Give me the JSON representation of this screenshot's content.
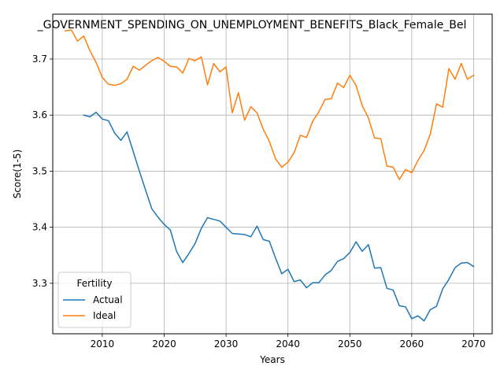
{
  "chart_data": {
    "type": "line",
    "title": "_GOVERNMENT_SPENDING_ON_UNEMPLOYMENT_BENEFITS_Black_Female_Bel",
    "xlabel": "Years",
    "ylabel": "Score(1-5)",
    "xlim": [
      2002,
      2073
    ],
    "ylim": [
      3.21,
      3.78
    ],
    "xticks": [
      2010,
      2020,
      2030,
      2040,
      2050,
      2060,
      2070
    ],
    "xtick_labels": [
      "2010",
      "2020",
      "2030",
      "2040",
      "2050",
      "2060",
      "2070"
    ],
    "yticks": [
      3.3,
      3.4,
      3.5,
      3.6,
      3.7
    ],
    "ytick_labels": [
      "3.3",
      "3.4",
      "3.5",
      "3.6",
      "3.7"
    ],
    "grid": true,
    "legend": {
      "title": "Fertility",
      "placement": "lower-left"
    },
    "series": [
      {
        "name": "Actual",
        "color": "#1f77b4",
        "x": [
          2007,
          2008,
          2009,
          2010,
          2011,
          2012,
          2013,
          2014,
          2015,
          2016,
          2017,
          2018,
          2019,
          2020,
          2021,
          2022,
          2023,
          2024,
          2025,
          2026,
          2027,
          2028,
          2029,
          2030,
          2031,
          2032,
          2033,
          2034,
          2035,
          2036,
          2037,
          2038,
          2039,
          2040,
          2041,
          2042,
          2043,
          2044,
          2045,
          2046,
          2047,
          2048,
          2049,
          2050,
          2051,
          2052,
          2053,
          2054,
          2055,
          2056,
          2057,
          2058,
          2059,
          2060,
          2061,
          2062,
          2063,
          2064,
          2065,
          2066,
          2067,
          2068,
          2069,
          2070
        ],
        "values": [
          3.6,
          3.597,
          3.605,
          3.593,
          3.59,
          3.568,
          3.555,
          3.57,
          3.535,
          3.5,
          3.466,
          3.433,
          3.418,
          3.405,
          3.395,
          3.357,
          3.337,
          3.353,
          3.371,
          3.398,
          3.417,
          3.414,
          3.411,
          3.4,
          3.389,
          3.388,
          3.387,
          3.383,
          3.402,
          3.378,
          3.375,
          3.345,
          3.317,
          3.325,
          3.303,
          3.306,
          3.292,
          3.301,
          3.301,
          3.315,
          3.323,
          3.339,
          3.344,
          3.355,
          3.374,
          3.357,
          3.369,
          3.327,
          3.328,
          3.291,
          3.288,
          3.26,
          3.258,
          3.237,
          3.242,
          3.233,
          3.253,
          3.259,
          3.29,
          3.307,
          3.328,
          3.336,
          3.337,
          3.33
        ]
      },
      {
        "name": "Ideal",
        "color": "#ff7f0e",
        "x": [
          2004,
          2005,
          2006,
          2007,
          2008,
          2009,
          2010,
          2011,
          2012,
          2013,
          2014,
          2015,
          2016,
          2017,
          2018,
          2019,
          2020,
          2021,
          2022,
          2023,
          2024,
          2025,
          2026,
          2027,
          2028,
          2029,
          2030,
          2031,
          2032,
          2033,
          2034,
          2035,
          2036,
          2037,
          2038,
          2039,
          2040,
          2041,
          2042,
          2043,
          2044,
          2045,
          2046,
          2047,
          2048,
          2049,
          2050,
          2051,
          2052,
          2053,
          2054,
          2055,
          2056,
          2057,
          2058,
          2059,
          2060,
          2061,
          2062,
          2063,
          2064,
          2065,
          2066,
          2067,
          2068,
          2069,
          2070
        ],
        "values": [
          3.75,
          3.752,
          3.732,
          3.741,
          3.715,
          3.694,
          3.667,
          3.655,
          3.653,
          3.656,
          3.664,
          3.687,
          3.68,
          3.689,
          3.697,
          3.703,
          3.696,
          3.687,
          3.686,
          3.675,
          3.701,
          3.697,
          3.704,
          3.654,
          3.692,
          3.677,
          3.686,
          3.604,
          3.64,
          3.591,
          3.615,
          3.604,
          3.575,
          3.553,
          3.522,
          3.507,
          3.516,
          3.533,
          3.564,
          3.56,
          3.589,
          3.606,
          3.628,
          3.629,
          3.657,
          3.649,
          3.671,
          3.653,
          3.617,
          3.595,
          3.559,
          3.558,
          3.509,
          3.507,
          3.485,
          3.503,
          3.497,
          3.519,
          3.537,
          3.566,
          3.62,
          3.614,
          3.683,
          3.664,
          3.692,
          3.664,
          3.671
        ]
      }
    ]
  }
}
